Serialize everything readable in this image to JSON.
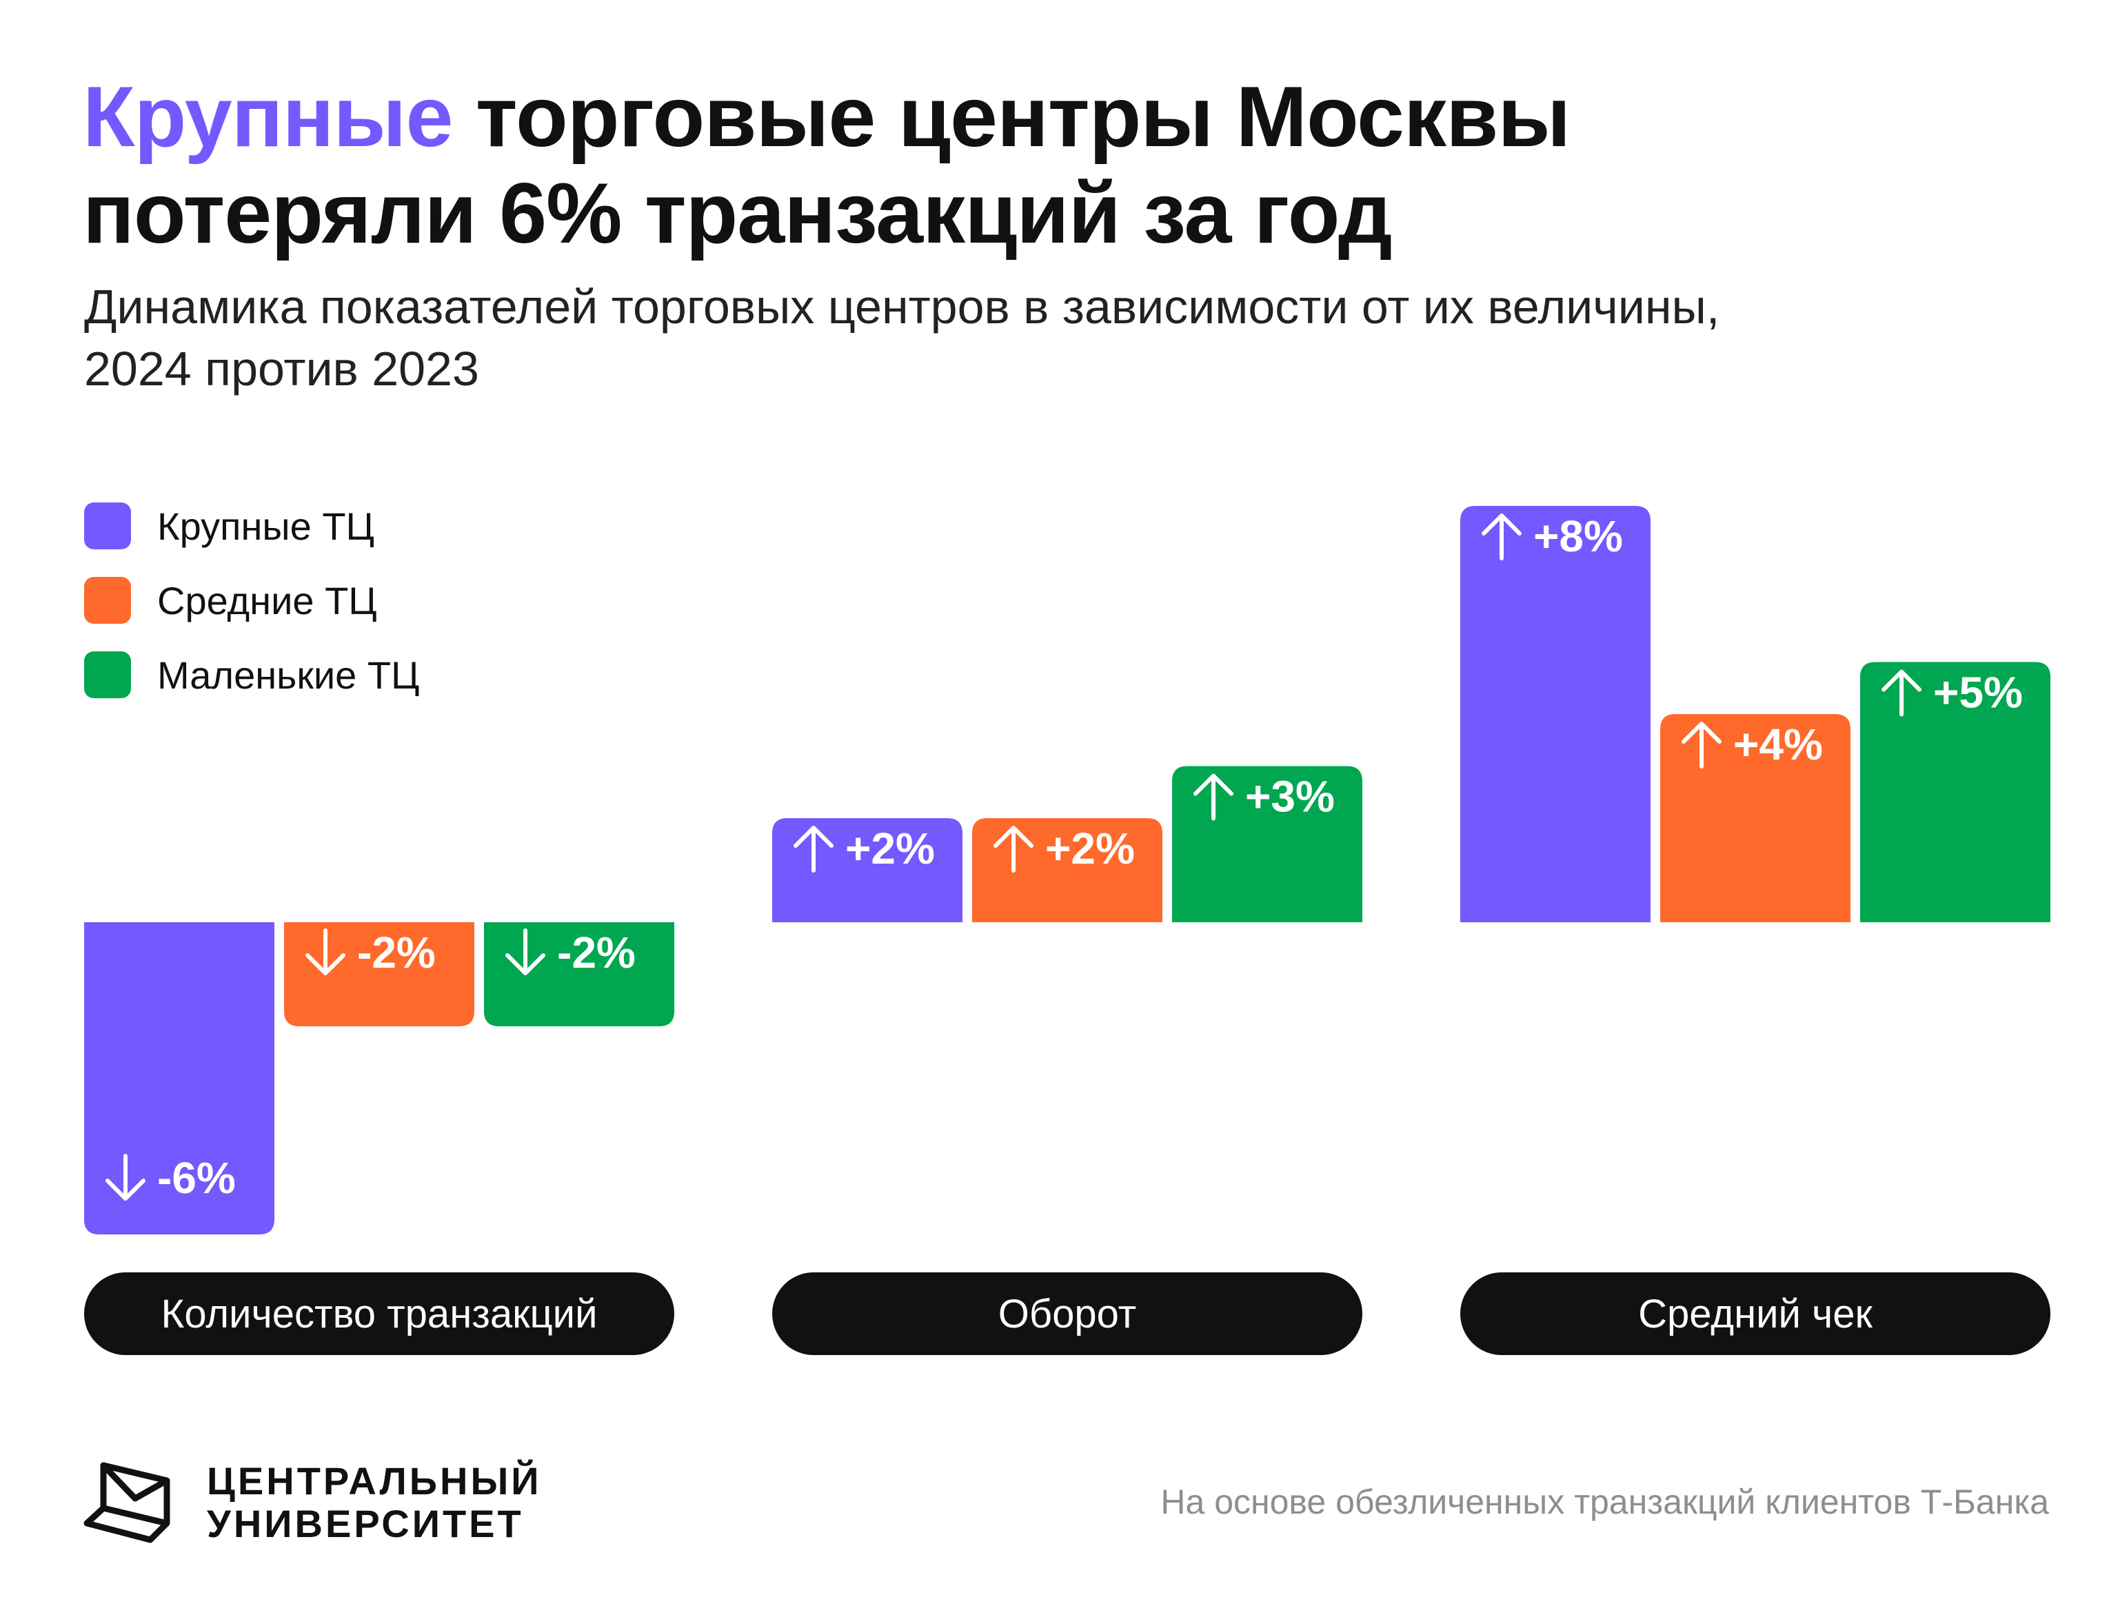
{
  "header": {
    "title_accent": "Крупные",
    "title_line1_rest": " торговые центры Москвы",
    "title_line2": "потеряли 6% транзакций за год",
    "subtitle_line1": "Динамика показателей торговых центров в зависимости от их величины,",
    "subtitle_line2": "2024 против 2023"
  },
  "colors": {
    "large": "#7459fe",
    "medium": "#ff6a2c",
    "small": "#00a650",
    "pill": "#111111"
  },
  "chart_data": {
    "type": "bar",
    "categories": [
      "Количество транзакций",
      "Оборот",
      "Средний чек"
    ],
    "series": [
      {
        "name": "Крупные ТЦ",
        "values": [
          -6,
          2,
          8
        ],
        "labels": [
          "-6%",
          "+2%",
          "+8%"
        ]
      },
      {
        "name": "Средние ТЦ",
        "values": [
          -2,
          2,
          4
        ],
        "labels": [
          "-2%",
          "+2%",
          "+4%"
        ]
      },
      {
        "name": "Маленькие ТЦ",
        "values": [
          -2,
          3,
          5
        ],
        "labels": [
          "-2%",
          "+3%",
          "+5%"
        ]
      }
    ],
    "unit": "%",
    "ylim": [
      -6,
      8
    ],
    "legend_position": "top-left",
    "grid": false
  },
  "footer": {
    "logo_line1": "ЦЕНТРАЛЬНЫЙ",
    "logo_line2": "УНИВЕРСИТЕТ",
    "source": "На основе обезличенных транзакций клиентов Т-Банка"
  }
}
